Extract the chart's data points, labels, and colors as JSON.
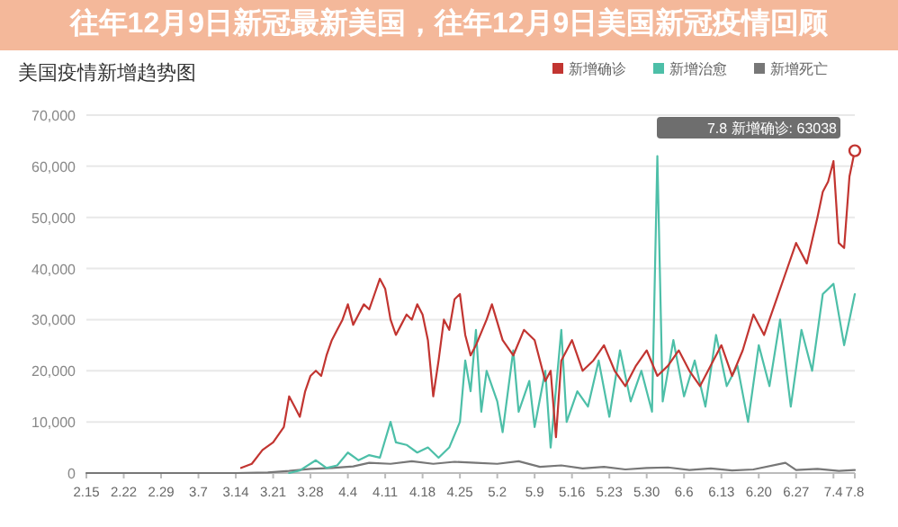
{
  "chart_data": {
    "type": "line",
    "title": "美国疫情新增趋势图",
    "annotations": [
      "往年12月9日新冠最新美国，往年12月9日美国新冠疫情回顾",
      {
        "text": "7.8 新增确诊: 63038",
        "x": "--07-08",
        "y": 63038
      }
    ],
    "xlim": [
      "--02-15",
      "--07-08"
    ],
    "xticks": [
      {
        "value": "--02-15",
        "label": "2.15"
      },
      {
        "value": "--02-22",
        "label": "2.22"
      },
      {
        "value": "--02-29",
        "label": "2.29"
      },
      {
        "value": "--03-07",
        "label": "3.7"
      },
      {
        "value": "--03-14",
        "label": "3.14"
      },
      {
        "value": "--03-21",
        "label": "3.21"
      },
      {
        "value": "--03-28",
        "label": "3.28"
      },
      {
        "value": "--04-04",
        "label": "4.4"
      },
      {
        "value": "--04-11",
        "label": "4.11"
      },
      {
        "value": "--04-18",
        "label": "4.18"
      },
      {
        "value": "--04-25",
        "label": "4.25"
      },
      {
        "value": "--05-02",
        "label": "5.2"
      },
      {
        "value": "--05-09",
        "label": "5.9"
      },
      {
        "value": "--05-16",
        "label": "5.16"
      },
      {
        "value": "--05-23",
        "label": "5.23"
      },
      {
        "value": "--05-30",
        "label": "5.30"
      },
      {
        "value": "--06-06",
        "label": "6.6"
      },
      {
        "value": "--06-13",
        "label": "6.13"
      },
      {
        "value": "--06-20",
        "label": "6.20"
      },
      {
        "value": "--06-27",
        "label": "6.27"
      },
      {
        "value": "--07-04",
        "label": "7.4"
      },
      {
        "value": "--07-08",
        "label": "7.8"
      }
    ],
    "ylim": [
      0,
      70000
    ],
    "yticks": [
      {
        "value": 0,
        "label": "0"
      },
      {
        "value": 10000,
        "label": "10,000"
      },
      {
        "value": 20000,
        "label": "20,000"
      },
      {
        "value": 30000,
        "label": "30,000"
      },
      {
        "value": 40000,
        "label": "40,000"
      },
      {
        "value": 50000,
        "label": "50,000"
      },
      {
        "value": 60000,
        "label": "60,000"
      },
      {
        "value": 70000,
        "label": "70,000"
      }
    ],
    "grid": "y",
    "legend": "top right",
    "marker": "none",
    "line_style": "solid",
    "series": [
      {
        "name": "新增确诊",
        "color": "#c23531",
        "x": [
          "--03-15",
          "--03-17",
          "--03-19",
          "--03-21",
          "--03-23",
          "--03-24",
          "--03-25",
          "--03-26",
          "--03-27",
          "--03-28",
          "--03-29",
          "--03-30",
          "--03-31",
          "--04-01",
          "--04-02",
          "--04-03",
          "--04-04",
          "--04-05",
          "--04-06",
          "--04-07",
          "--04-08",
          "--04-09",
          "--04-10",
          "--04-11",
          "--04-12",
          "--04-13",
          "--04-14",
          "--04-15",
          "--04-16",
          "--04-17",
          "--04-18",
          "--04-19",
          "--04-20",
          "--04-21",
          "--04-22",
          "--04-23",
          "--04-24",
          "--04-25",
          "--04-26",
          "--04-27",
          "--04-28",
          "--04-30",
          "--05-01",
          "--05-03",
          "--05-05",
          "--05-07",
          "--05-09",
          "--05-11",
          "--05-12",
          "--05-13",
          "--05-14",
          "--05-16",
          "--05-18",
          "--05-20",
          "--05-22",
          "--05-24",
          "--05-26",
          "--05-28",
          "--05-30",
          "--06-01",
          "--06-03",
          "--06-05",
          "--06-07",
          "--06-09",
          "--06-11",
          "--06-13",
          "--06-15",
          "--06-17",
          "--06-19",
          "--06-21",
          "--06-23",
          "--06-25",
          "--06-27",
          "--06-29",
          "--07-01",
          "--07-02",
          "--07-03",
          "--07-04",
          "--07-05",
          "--07-06",
          "--07-07",
          "--07-08"
        ],
        "values": [
          1000,
          1800,
          4500,
          6000,
          9000,
          15000,
          13000,
          11000,
          16000,
          19000,
          20000,
          19000,
          23000,
          26000,
          28000,
          30000,
          33000,
          29000,
          31000,
          33000,
          32000,
          35000,
          38000,
          36000,
          30000,
          27000,
          29000,
          31000,
          30000,
          33000,
          31000,
          26000,
          15000,
          22000,
          30000,
          28000,
          34000,
          35000,
          27000,
          23000,
          25000,
          30000,
          33000,
          26000,
          23000,
          28000,
          26000,
          18000,
          20000,
          7000,
          22000,
          26000,
          20000,
          22000,
          25000,
          20000,
          17000,
          21000,
          24000,
          19000,
          21000,
          24000,
          20000,
          17000,
          21000,
          25000,
          19000,
          24000,
          31000,
          27000,
          33000,
          39000,
          45000,
          41000,
          50000,
          55000,
          57000,
          61000,
          45000,
          44000,
          58000,
          63038
        ]
      },
      {
        "name": "新增治愈",
        "color": "#4dbfa8",
        "x": [
          "--03-24",
          "--03-26",
          "--03-29",
          "--03-31",
          "--04-02",
          "--04-04",
          "--04-06",
          "--04-08",
          "--04-10",
          "--04-12",
          "--04-13",
          "--04-15",
          "--04-17",
          "--04-19",
          "--04-21",
          "--04-23",
          "--04-25",
          "--04-26",
          "--04-27",
          "--04-28",
          "--04-29",
          "--04-30",
          "--05-02",
          "--05-03",
          "--05-05",
          "--05-06",
          "--05-08",
          "--05-09",
          "--05-11",
          "--05-12",
          "--05-14",
          "--05-15",
          "--05-17",
          "--05-19",
          "--05-21",
          "--05-23",
          "--05-25",
          "--05-27",
          "--05-29",
          "--05-31",
          "--06-01",
          "--06-02",
          "--06-04",
          "--06-06",
          "--06-08",
          "--06-10",
          "--06-12",
          "--06-14",
          "--06-16",
          "--06-18",
          "--06-20",
          "--06-22",
          "--06-24",
          "--06-26",
          "--06-28",
          "--06-30",
          "--07-02",
          "--07-04",
          "--07-06",
          "--07-08"
        ],
        "values": [
          0,
          500,
          2500,
          1000,
          1500,
          4000,
          2500,
          3500,
          3000,
          10000,
          6000,
          5500,
          4000,
          5000,
          3000,
          5000,
          10000,
          22000,
          16000,
          28000,
          12000,
          20000,
          14000,
          8000,
          24000,
          12000,
          18000,
          9000,
          20000,
          5000,
          28000,
          10000,
          16000,
          13000,
          22000,
          11000,
          24000,
          14000,
          20000,
          12000,
          62000,
          14000,
          26000,
          15000,
          22000,
          13000,
          27000,
          17000,
          21000,
          10000,
          25000,
          17000,
          30000,
          13000,
          28000,
          20000,
          35000,
          37000,
          25000,
          35000
        ]
      },
      {
        "name": "新增死亡",
        "color": "#777777",
        "x": [
          "--02-15",
          "--03-14",
          "--03-20",
          "--03-24",
          "--03-28",
          "--04-01",
          "--04-05",
          "--04-08",
          "--04-12",
          "--04-16",
          "--04-20",
          "--04-24",
          "--04-28",
          "--05-02",
          "--05-06",
          "--05-10",
          "--05-14",
          "--05-18",
          "--05-22",
          "--05-26",
          "--05-30",
          "--06-03",
          "--06-07",
          "--06-11",
          "--06-15",
          "--06-19",
          "--06-25",
          "--06-27",
          "--07-01",
          "--07-05",
          "--07-08"
        ],
        "values": [
          0,
          0,
          100,
          400,
          800,
          1000,
          1300,
          2000,
          1800,
          2300,
          1800,
          2200,
          2000,
          1800,
          2300,
          1200,
          1500,
          900,
          1200,
          700,
          1000,
          1100,
          600,
          900,
          500,
          700,
          2000,
          600,
          800,
          400,
          600
        ]
      }
    ]
  }
}
